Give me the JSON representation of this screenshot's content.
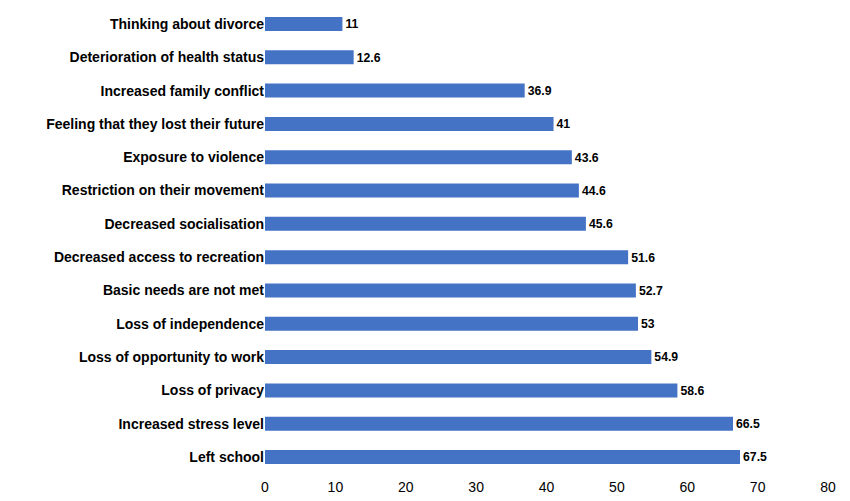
{
  "chart_data": {
    "type": "bar",
    "orientation": "horizontal",
    "categories": [
      "Left school",
      "Increased stress level",
      "Loss of privacy",
      "Loss of opportunity to work",
      "Loss of independence",
      "Basic needs are not met",
      "Decreased access to recreation",
      "Decreased socialisation",
      "Restriction on their movement",
      "Exposure to violence",
      "Feeling that they lost their future",
      "Increased family conflict",
      "Deterioration of health status",
      "Thinking about divorce"
    ],
    "values": [
      67.5,
      66.5,
      58.6,
      54.9,
      53,
      52.7,
      51.6,
      45.6,
      44.6,
      43.6,
      41,
      36.9,
      12.6,
      11
    ],
    "color": "#4472c4",
    "xlim": [
      0,
      80
    ],
    "xticks": [
      0,
      10,
      20,
      30,
      40,
      50,
      60,
      70,
      80
    ],
    "grid": false,
    "data_labels": true
  }
}
